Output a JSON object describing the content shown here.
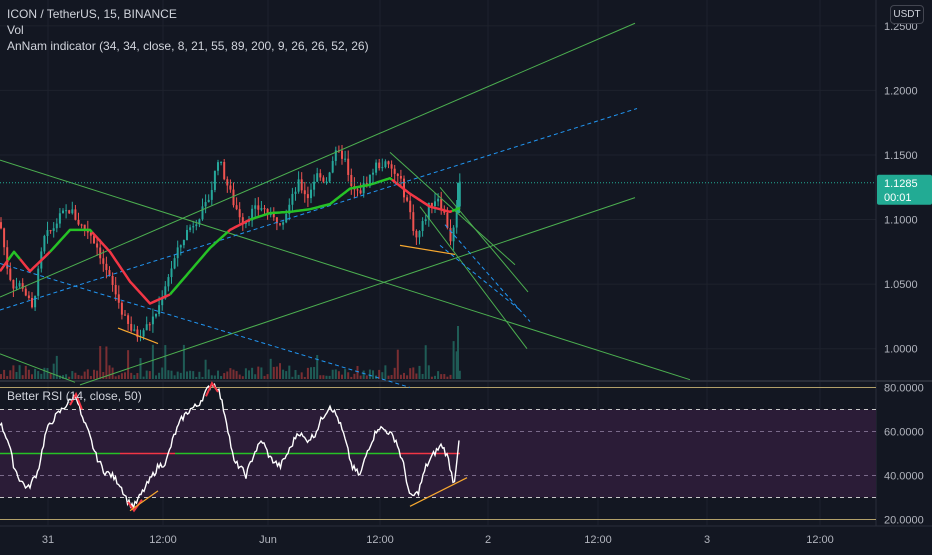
{
  "header": {
    "symbol_line": "ICON / TetherUS, 15, BINANCE",
    "vol_label": "Vol",
    "indicator_name": "AnNam indicator",
    "indicator_params": "(34, 34, close, 8, 21, 55, 89, 200, 9, 26, 26, 52, 26)",
    "currency_button": "USDT"
  },
  "price_label": {
    "value": "1.1285",
    "countdown": "00:01"
  },
  "colors": {
    "background": "#131722",
    "up": "#26a69a",
    "down": "#ef5350",
    "trendline": "#4caf50",
    "dashed": "#2196f3",
    "ma_up": "#26c226",
    "ma_down": "#f23645",
    "rsi_fill": "#2b1c37",
    "rsi_line": "#ffffff",
    "divergence": "#f7a82f",
    "price_label_bg": "#22ab94"
  },
  "chart_data": [
    {
      "type": "candlestick",
      "title": "ICON / TetherUS, 15, BINANCE",
      "ylim": [
        0.975,
        1.27
      ],
      "yticks": [
        "1.2500",
        "1.2000",
        "1.1500",
        "1.1000",
        "1.0500",
        "1.0000"
      ],
      "ytick_values": [
        1.25,
        1.2,
        1.15,
        1.1,
        1.05,
        1.0
      ],
      "xticks": [
        "31",
        "12:00",
        "Jun",
        "12:00",
        "2",
        "12:00",
        "3",
        "12:00"
      ],
      "last_price": 1.1285,
      "close_path": [
        {
          "t": 0,
          "p": 1.098
        },
        {
          "t": 8,
          "p": 1.06
        },
        {
          "t": 14,
          "p": 1.048
        },
        {
          "t": 22,
          "p": 1.05
        },
        {
          "t": 32,
          "p": 1.03
        },
        {
          "t": 44,
          "p": 1.085
        },
        {
          "t": 52,
          "p": 1.092
        },
        {
          "t": 60,
          "p": 1.102
        },
        {
          "t": 70,
          "p": 1.108
        },
        {
          "t": 80,
          "p": 1.096
        },
        {
          "t": 90,
          "p": 1.09
        },
        {
          "t": 98,
          "p": 1.078
        },
        {
          "t": 106,
          "p": 1.06
        },
        {
          "t": 116,
          "p": 1.042
        },
        {
          "t": 126,
          "p": 1.02
        },
        {
          "t": 136,
          "p": 1.01
        },
        {
          "t": 148,
          "p": 1.018
        },
        {
          "t": 158,
          "p": 1.03
        },
        {
          "t": 166,
          "p": 1.052
        },
        {
          "t": 176,
          "p": 1.072
        },
        {
          "t": 186,
          "p": 1.09
        },
        {
          "t": 196,
          "p": 1.1
        },
        {
          "t": 206,
          "p": 1.11
        },
        {
          "t": 212,
          "p": 1.125
        },
        {
          "t": 218,
          "p": 1.148
        },
        {
          "t": 226,
          "p": 1.13
        },
        {
          "t": 234,
          "p": 1.112
        },
        {
          "t": 244,
          "p": 1.098
        },
        {
          "t": 252,
          "p": 1.106
        },
        {
          "t": 262,
          "p": 1.11
        },
        {
          "t": 272,
          "p": 1.1
        },
        {
          "t": 282,
          "p": 1.1
        },
        {
          "t": 290,
          "p": 1.112
        },
        {
          "t": 298,
          "p": 1.128
        },
        {
          "t": 308,
          "p": 1.118
        },
        {
          "t": 316,
          "p": 1.135
        },
        {
          "t": 326,
          "p": 1.13
        },
        {
          "t": 334,
          "p": 1.15
        },
        {
          "t": 344,
          "p": 1.15
        },
        {
          "t": 350,
          "p": 1.125
        },
        {
          "t": 358,
          "p": 1.12
        },
        {
          "t": 366,
          "p": 1.128
        },
        {
          "t": 376,
          "p": 1.142
        },
        {
          "t": 384,
          "p": 1.143
        },
        {
          "t": 392,
          "p": 1.138
        },
        {
          "t": 400,
          "p": 1.13
        },
        {
          "t": 408,
          "p": 1.112
        },
        {
          "t": 416,
          "p": 1.085
        },
        {
          "t": 422,
          "p": 1.095
        },
        {
          "t": 430,
          "p": 1.112
        },
        {
          "t": 438,
          "p": 1.118
        },
        {
          "t": 446,
          "p": 1.1
        },
        {
          "t": 452,
          "p": 1.08
        },
        {
          "t": 456,
          "p": 1.11
        },
        {
          "t": 460,
          "p": 1.1285
        }
      ],
      "ma_path": [
        {
          "t": 0,
          "p": 1.06
        },
        {
          "t": 14,
          "p": 1.075
        },
        {
          "t": 30,
          "p": 1.06
        },
        {
          "t": 50,
          "p": 1.075
        },
        {
          "t": 70,
          "p": 1.092
        },
        {
          "t": 90,
          "p": 1.092
        },
        {
          "t": 110,
          "p": 1.075
        },
        {
          "t": 130,
          "p": 1.052
        },
        {
          "t": 150,
          "p": 1.035
        },
        {
          "t": 170,
          "p": 1.042
        },
        {
          "t": 190,
          "p": 1.06
        },
        {
          "t": 210,
          "p": 1.078
        },
        {
          "t": 230,
          "p": 1.092
        },
        {
          "t": 250,
          "p": 1.1
        },
        {
          "t": 270,
          "p": 1.105
        },
        {
          "t": 290,
          "p": 1.106
        },
        {
          "t": 310,
          "p": 1.108
        },
        {
          "t": 330,
          "p": 1.112
        },
        {
          "t": 350,
          "p": 1.124
        },
        {
          "t": 370,
          "p": 1.127
        },
        {
          "t": 390,
          "p": 1.132
        },
        {
          "t": 410,
          "p": 1.12
        },
        {
          "t": 430,
          "p": 1.11
        },
        {
          "t": 450,
          "p": 1.106
        },
        {
          "t": 460,
          "p": 1.109
        }
      ],
      "ma_colors": [
        {
          "t_from": 0,
          "t_to": 8,
          "c": "down"
        },
        {
          "t_from": 8,
          "t_to": 20,
          "c": "up"
        },
        {
          "t_from": 20,
          "t_to": 50,
          "c": "down"
        },
        {
          "t_from": 50,
          "t_to": 92,
          "c": "up"
        },
        {
          "t_from": 92,
          "t_to": 170,
          "c": "down"
        },
        {
          "t_from": 170,
          "t_to": 228,
          "c": "up"
        },
        {
          "t_from": 228,
          "t_to": 250,
          "c": "down"
        },
        {
          "t_from": 250,
          "t_to": 392,
          "c": "up"
        },
        {
          "t_from": 392,
          "t_to": 452,
          "c": "down"
        },
        {
          "t_from": 452,
          "t_to": 460,
          "c": "up"
        }
      ],
      "trendlines": [
        {
          "t1": 0,
          "p1": 1.04,
          "t2": 635,
          "p2": 1.252,
          "style": "solid"
        },
        {
          "t1": 0,
          "p1": 1.146,
          "t2": 690,
          "p2": 0.976,
          "style": "solid"
        },
        {
          "t1": 80,
          "p1": 0.972,
          "t2": 635,
          "p2": 1.117,
          "style": "solid"
        },
        {
          "t1": 0,
          "p1": 1.03,
          "t2": 637,
          "p2": 1.186,
          "style": "dashed"
        },
        {
          "t1": 0,
          "p1": 1.066,
          "t2": 410,
          "p2": 0.97,
          "style": "dashed"
        },
        {
          "t1": 0,
          "p1": 0.996,
          "t2": 75,
          "p2": 0.974,
          "style": "solid"
        },
        {
          "t1": 390,
          "p1": 1.152,
          "t2": 515,
          "p2": 1.065,
          "style": "solid"
        },
        {
          "t1": 420,
          "p1": 1.11,
          "t2": 527,
          "p2": 1.0,
          "style": "solid"
        },
        {
          "t1": 440,
          "p1": 1.125,
          "t2": 528,
          "p2": 1.044,
          "style": "solid"
        },
        {
          "t1": 445,
          "p1": 1.096,
          "t2": 530,
          "p2": 1.021,
          "style": "dashed"
        },
        {
          "t1": 440,
          "p1": 1.08,
          "t2": 520,
          "p2": 1.03,
          "style": "dashed"
        }
      ],
      "divergence_lines": [
        {
          "t1": 118,
          "p1": 1.016,
          "t2": 158,
          "p2": 1.004
        },
        {
          "t1": 400,
          "p1": 1.08,
          "t2": 455,
          "p2": 1.073
        }
      ]
    },
    {
      "type": "line",
      "title": "Better RSI",
      "legend": "Better RSI (14, close, 50)",
      "ylim": [
        17.5,
        82.5
      ],
      "yticks": [
        "80.0000",
        "60.0000",
        "40.0000",
        "20.0000"
      ],
      "ytick_values": [
        80,
        60,
        40,
        20
      ],
      "band": [
        30,
        70
      ],
      "levels": [
        80,
        70,
        50,
        30,
        20
      ],
      "last_value": 57,
      "path": [
        {
          "t": 0,
          "v": 64
        },
        {
          "t": 8,
          "v": 56
        },
        {
          "t": 14,
          "v": 44
        },
        {
          "t": 20,
          "v": 38
        },
        {
          "t": 28,
          "v": 34
        },
        {
          "t": 38,
          "v": 42
        },
        {
          "t": 46,
          "v": 60
        },
        {
          "t": 54,
          "v": 66
        },
        {
          "t": 62,
          "v": 70
        },
        {
          "t": 70,
          "v": 74
        },
        {
          "t": 76,
          "v": 77
        },
        {
          "t": 82,
          "v": 66
        },
        {
          "t": 88,
          "v": 60
        },
        {
          "t": 96,
          "v": 49
        },
        {
          "t": 104,
          "v": 42
        },
        {
          "t": 112,
          "v": 40
        },
        {
          "t": 120,
          "v": 36
        },
        {
          "t": 128,
          "v": 28
        },
        {
          "t": 134,
          "v": 26
        },
        {
          "t": 142,
          "v": 32
        },
        {
          "t": 150,
          "v": 38
        },
        {
          "t": 158,
          "v": 44
        },
        {
          "t": 166,
          "v": 46
        },
        {
          "t": 174,
          "v": 58
        },
        {
          "t": 182,
          "v": 66
        },
        {
          "t": 190,
          "v": 70
        },
        {
          "t": 198,
          "v": 72
        },
        {
          "t": 206,
          "v": 78
        },
        {
          "t": 212,
          "v": 82
        },
        {
          "t": 218,
          "v": 80
        },
        {
          "t": 226,
          "v": 66
        },
        {
          "t": 234,
          "v": 46
        },
        {
          "t": 240,
          "v": 44
        },
        {
          "t": 246,
          "v": 40
        },
        {
          "t": 254,
          "v": 50
        },
        {
          "t": 262,
          "v": 56
        },
        {
          "t": 270,
          "v": 48
        },
        {
          "t": 280,
          "v": 44
        },
        {
          "t": 290,
          "v": 52
        },
        {
          "t": 298,
          "v": 60
        },
        {
          "t": 306,
          "v": 56
        },
        {
          "t": 314,
          "v": 58
        },
        {
          "t": 322,
          "v": 66
        },
        {
          "t": 330,
          "v": 72
        },
        {
          "t": 338,
          "v": 66
        },
        {
          "t": 344,
          "v": 58
        },
        {
          "t": 352,
          "v": 44
        },
        {
          "t": 360,
          "v": 40
        },
        {
          "t": 368,
          "v": 52
        },
        {
          "t": 378,
          "v": 62
        },
        {
          "t": 388,
          "v": 60
        },
        {
          "t": 396,
          "v": 56
        },
        {
          "t": 404,
          "v": 44
        },
        {
          "t": 410,
          "v": 30
        },
        {
          "t": 418,
          "v": 32
        },
        {
          "t": 426,
          "v": 44
        },
        {
          "t": 434,
          "v": 50
        },
        {
          "t": 442,
          "v": 54
        },
        {
          "t": 448,
          "v": 48
        },
        {
          "t": 454,
          "v": 36
        },
        {
          "t": 458,
          "v": 52
        },
        {
          "t": 460,
          "v": 57
        }
      ],
      "signal": {
        "t1": 0,
        "t2": 460,
        "v": 50
      },
      "divergence_lines": [
        {
          "t1": 130,
          "v1": 24,
          "t2": 158,
          "v2": 33
        },
        {
          "t1": 410,
          "v1": 26,
          "t2": 467,
          "v2": 39
        }
      ]
    }
  ]
}
